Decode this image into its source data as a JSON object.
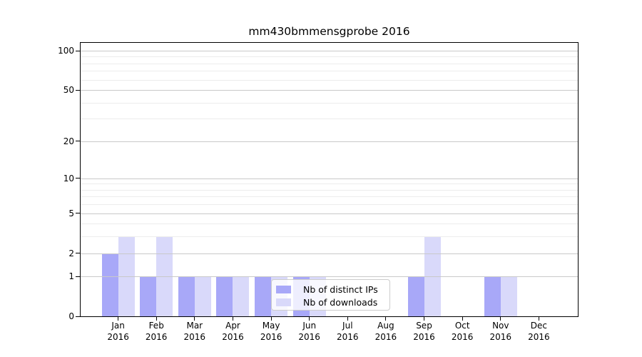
{
  "title": "mm430bmmensgprobe 2016",
  "chart_data": {
    "type": "bar",
    "title": "mm430bmmensgprobe 2016",
    "categories": [
      "Jan 2016",
      "Feb 2016",
      "Mar 2016",
      "Apr 2016",
      "May 2016",
      "Jun 2016",
      "Jul 2016",
      "Aug 2016",
      "Sep 2016",
      "Oct 2016",
      "Nov 2016",
      "Dec 2016"
    ],
    "series": [
      {
        "name": "Nb of distinct IPs",
        "color": "#a8a8f8",
        "values": [
          2,
          1,
          1,
          1,
          1,
          1,
          0,
          0,
          1,
          0,
          1,
          0
        ]
      },
      {
        "name": "Nb of downloads",
        "color": "#d9d9fa",
        "values": [
          3,
          3,
          1,
          1,
          1,
          1,
          0,
          0,
          3,
          0,
          1,
          0
        ]
      }
    ],
    "xlabel": "",
    "ylabel": "",
    "y_axis": {
      "scale": "log1p",
      "ticks": [
        0,
        1,
        2,
        5,
        10,
        20,
        50,
        100
      ],
      "minor_ticks": [
        3,
        4,
        6,
        7,
        8,
        9,
        30,
        40,
        60,
        70,
        80,
        90
      ],
      "ylim": [
        0,
        100
      ]
    },
    "grid": true,
    "legend_position": "inside-lower-center"
  },
  "legend": {
    "items": [
      {
        "label": "Nb of distinct IPs",
        "color": "#a8a8f8"
      },
      {
        "label": "Nb of downloads",
        "color": "#d9d9fa"
      }
    ]
  },
  "colors": {
    "background": "#ffffff",
    "axis": "#000000",
    "grid_major": "#c9c9c9",
    "grid_minor": "#ececec",
    "legend_border": "#cccccc",
    "legend_background": "rgba(255,255,255,0.8)",
    "bar_distinct_ips": "#a8a8f8",
    "bar_downloads": "#d9d9fa"
  }
}
